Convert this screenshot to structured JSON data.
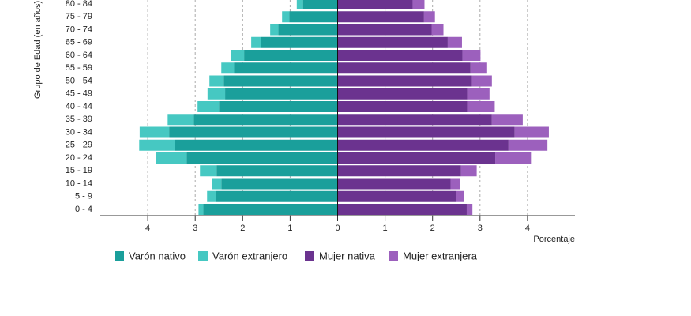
{
  "chart_data": {
    "type": "population-pyramid",
    "ylabel": "Grupo de Edad (en años)",
    "xlabel": "Porcentaje",
    "categories": [
      "0 - 4",
      "5 - 9",
      "10 - 14",
      "15 - 19",
      "20 - 24",
      "25 - 29",
      "30 - 34",
      "35 - 39",
      "40 - 44",
      "45 - 49",
      "50 - 54",
      "55 - 59",
      "60 - 64",
      "65 - 69",
      "70 - 74",
      "75 - 79",
      "80 - 84"
    ],
    "series": [
      {
        "name": "Varón nativo",
        "color": "#1a9f9b",
        "values": [
          -2.83,
          -2.57,
          -2.45,
          -2.55,
          -3.18,
          -3.43,
          -3.55,
          -3.03,
          -2.5,
          -2.37,
          -2.4,
          -2.18,
          -1.97,
          -1.62,
          -1.25,
          -1.02,
          -0.73
        ]
      },
      {
        "name": "Varón extranjero",
        "color": "#46c8c2",
        "values": [
          -0.1,
          -0.18,
          -0.2,
          -0.35,
          -0.65,
          -0.75,
          -0.62,
          -0.55,
          -0.45,
          -0.37,
          -0.3,
          -0.27,
          -0.28,
          -0.2,
          -0.17,
          -0.15,
          -0.13
        ]
      },
      {
        "name": "Mujer nativa",
        "color": "#6b338f",
        "values": [
          2.72,
          2.5,
          2.38,
          2.6,
          3.32,
          3.6,
          3.73,
          3.25,
          2.73,
          2.73,
          2.83,
          2.8,
          2.63,
          2.32,
          1.98,
          1.82,
          1.58
        ]
      },
      {
        "name": "Mujer extranjera",
        "color": "#9c60bd",
        "values": [
          0.12,
          0.17,
          0.2,
          0.33,
          0.77,
          0.82,
          0.72,
          0.65,
          0.58,
          0.47,
          0.42,
          0.35,
          0.38,
          0.3,
          0.25,
          0.23,
          0.25
        ]
      }
    ],
    "xlim": [
      -5,
      5
    ],
    "xticks": [
      {
        "value": -4,
        "label": "4"
      },
      {
        "value": -3,
        "label": "3"
      },
      {
        "value": -2,
        "label": "2"
      },
      {
        "value": -1,
        "label": "1"
      },
      0,
      1,
      2,
      3,
      4
    ],
    "grid": true
  }
}
